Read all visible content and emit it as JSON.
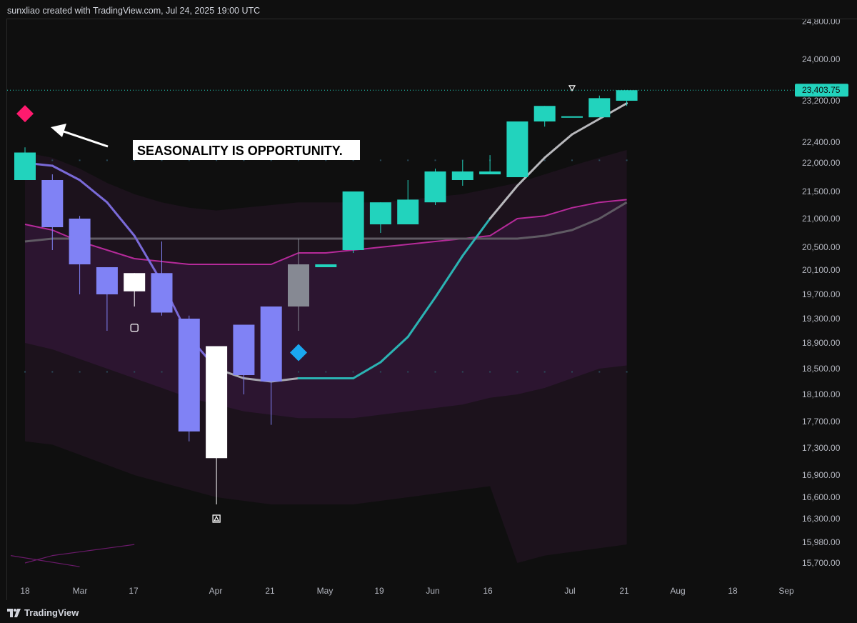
{
  "header": {
    "attribution": "sunxliao created with TradingView.com, Jul 24, 2025 19:00 UTC"
  },
  "footer": {
    "logo_text": "TradingView"
  },
  "annotation": {
    "text": "SEASONALITY IS OPPORTUNITY."
  },
  "price_axis": {
    "labels": [
      24800,
      24000,
      23200,
      22400,
      22000,
      21500,
      21000,
      20500,
      20100,
      19700,
      19300,
      18900,
      18500,
      18100,
      17700,
      17300,
      16900,
      16600,
      16300,
      15980,
      15700
    ],
    "last_price": "23,403.75"
  },
  "time_axis": {
    "labels": [
      "18",
      "Mar",
      "17",
      "Apr",
      "21",
      "May",
      "19",
      "Jun",
      "16",
      "Jul",
      "21",
      "Aug",
      "18",
      "Sep"
    ]
  },
  "colors": {
    "bull": "#22d3bd",
    "bear": "#8082f5",
    "neutral_gray": "#868993",
    "white": "#ffffff",
    "band_magenta": "#b62a9a",
    "ma_gray": "#5f5a63",
    "signal_pink": "#ff1a6e",
    "signal_cyan": "#1aa8f0"
  },
  "chart_data": {
    "type": "candlestick",
    "x_unit": "week",
    "candles": [
      {
        "o": 21700,
        "h": 22300,
        "l": 21700,
        "c": 22200,
        "color": "bull"
      },
      {
        "o": 21700,
        "h": 21800,
        "l": 20450,
        "c": 20850,
        "color": "bear"
      },
      {
        "o": 21000,
        "h": 21050,
        "l": 19700,
        "c": 20200,
        "color": "bear"
      },
      {
        "o": 20150,
        "h": 20150,
        "l": 19100,
        "c": 19700,
        "color": "bear"
      },
      {
        "o": 20050,
        "h": 20050,
        "l": 19500,
        "c": 19750,
        "color": "white"
      },
      {
        "o": 20050,
        "h": 20600,
        "l": 19350,
        "c": 19400,
        "color": "bear"
      },
      {
        "o": 19300,
        "h": 19350,
        "l": 17400,
        "c": 17550,
        "color": "bear"
      },
      {
        "o": 17150,
        "h": 18850,
        "l": 16500,
        "c": 18850,
        "color": "white"
      },
      {
        "o": 18400,
        "h": 19200,
        "l": 18100,
        "c": 19200,
        "color": "bear"
      },
      {
        "o": 18300,
        "h": 19500,
        "l": 17650,
        "c": 19500,
        "color": "bear"
      },
      {
        "o": 19500,
        "h": 20650,
        "l": 19100,
        "c": 20200,
        "color": "neutral_gray"
      },
      {
        "o": 20150,
        "h": 20200,
        "l": 20150,
        "c": 20200,
        "color": "bull"
      },
      {
        "o": 20450,
        "h": 21500,
        "l": 20400,
        "c": 21500,
        "color": "bull"
      },
      {
        "o": 20900,
        "h": 21300,
        "l": 20750,
        "c": 21300,
        "color": "bull"
      },
      {
        "o": 20900,
        "h": 21700,
        "l": 20900,
        "c": 21350,
        "color": "bull"
      },
      {
        "o": 21300,
        "h": 21900,
        "l": 21250,
        "c": 21850,
        "color": "bull"
      },
      {
        "o": 21700,
        "h": 22050,
        "l": 21600,
        "c": 21850,
        "color": "bull"
      },
      {
        "o": 21800,
        "h": 22150,
        "l": 21800,
        "c": 21850,
        "color": "bull"
      },
      {
        "o": 21750,
        "h": 22800,
        "l": 21750,
        "c": 22800,
        "color": "bull"
      },
      {
        "o": 22800,
        "h": 23100,
        "l": 22700,
        "c": 23100,
        "color": "bull"
      },
      {
        "o": 22900,
        "h": 22950,
        "l": 22950,
        "c": 22900,
        "color": "bull"
      },
      {
        "o": 22880,
        "h": 23300,
        "l": 22880,
        "c": 23250,
        "color": "bull"
      },
      {
        "o": 23200,
        "h": 23403.75,
        "l": 23100,
        "c": 23403.75,
        "color": "bull"
      }
    ],
    "moving_average_short": [
      22000,
      21950,
      21700,
      21300,
      20700,
      19900,
      19000,
      18500,
      18350,
      18300,
      18350,
      18350,
      18350,
      18600,
      19000,
      19650,
      20350,
      21000,
      21600,
      22100,
      22550,
      22850,
      23150
    ],
    "moving_average_long": [
      20600,
      20650,
      20650,
      20650,
      20650,
      20650,
      20650,
      20650,
      20650,
      20650,
      20650,
      20650,
      20650,
      20650,
      20650,
      20650,
      20650,
      20650,
      20650,
      20700,
      20800,
      21000,
      21300
    ],
    "band_upper_outer": [
      22200,
      22100,
      21900,
      21650,
      21450,
      21300,
      21200,
      21150,
      21200,
      21250,
      21300,
      21300,
      21300,
      21300,
      21350,
      21400,
      21450,
      21550,
      21650,
      21800,
      21950,
      22100,
      22250
    ],
    "band_upper_inner": [
      20900,
      20800,
      20600,
      20450,
      20300,
      20250,
      20200,
      20200,
      20200,
      20200,
      20400,
      20400,
      20450,
      20500,
      20550,
      20600,
      20650,
      20700,
      21000,
      21050,
      21200,
      21300,
      21350
    ],
    "band_lower_inner": [
      18900,
      18800,
      18650,
      18500,
      18350,
      18200,
      18050,
      17950,
      17850,
      17800,
      17750,
      17750,
      17750,
      17800,
      17850,
      17900,
      17950,
      18050,
      18100,
      18200,
      18350,
      18500,
      18550
    ],
    "band_lower_outer": [
      17400,
      17350,
      17200,
      17050,
      16900,
      16800,
      16700,
      16600,
      16550,
      16500,
      16500,
      16500,
      16500,
      16550,
      16600,
      16650,
      16700,
      16750,
      15700,
      15800,
      15850,
      15900,
      15950
    ],
    "signals": [
      {
        "type": "diamond",
        "index": 0,
        "price": 22950,
        "color": "signal_pink"
      },
      {
        "type": "diamond",
        "index": 10,
        "price": 18750,
        "color": "signal_cyan"
      },
      {
        "type": "square-marker",
        "index": 4,
        "price": 19150
      },
      {
        "type": "triangle-up-marker",
        "index": 7,
        "price": 16300
      },
      {
        "type": "triangle-down-marker",
        "index": 20,
        "price": 23450
      }
    ],
    "ylim": [
      15600,
      24900
    ]
  }
}
